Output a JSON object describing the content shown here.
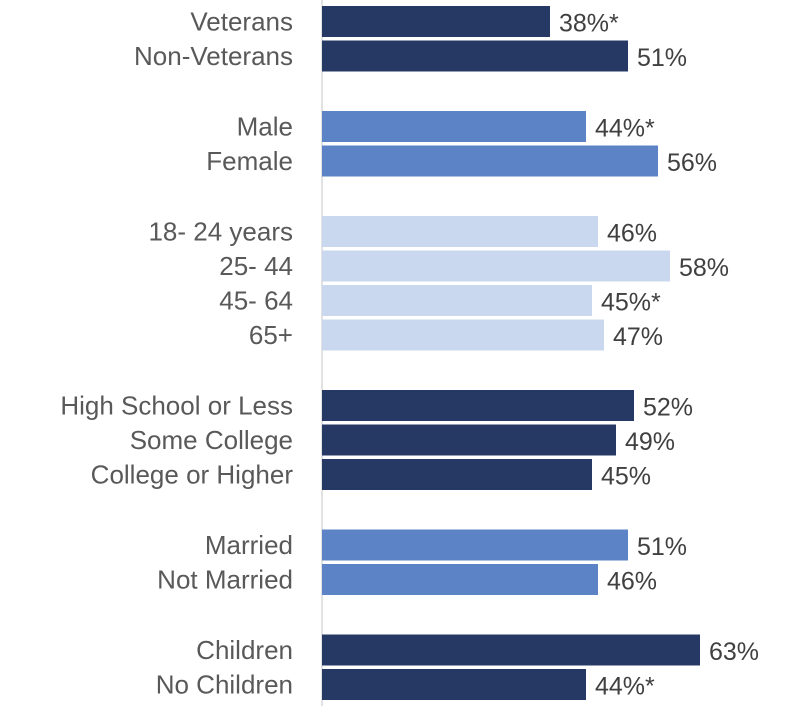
{
  "chart_data": {
    "type": "bar",
    "orientation": "horizontal",
    "xlim": [
      0,
      63
    ],
    "grid": false,
    "legend": "none",
    "groups": [
      {
        "color": "#253964",
        "items": [
          {
            "label": "Veterans",
            "value": 38,
            "value_label": "38%*"
          },
          {
            "label": "Non-Veterans",
            "value": 51,
            "value_label": "51%"
          }
        ]
      },
      {
        "color": "#5B83C6",
        "items": [
          {
            "label": "Male",
            "value": 44,
            "value_label": "44%*"
          },
          {
            "label": "Female",
            "value": 56,
            "value_label": "56%"
          }
        ]
      },
      {
        "color": "#C9D8EE",
        "items": [
          {
            "label": "18- 24 years",
            "value": 46,
            "value_label": "46%"
          },
          {
            "label": "25- 44",
            "value": 58,
            "value_label": "58%"
          },
          {
            "label": "45- 64",
            "value": 45,
            "value_label": "45%*"
          },
          {
            "label": "65+",
            "value": 47,
            "value_label": "47%"
          }
        ]
      },
      {
        "color": "#253964",
        "items": [
          {
            "label": "High School or Less",
            "value": 52,
            "value_label": "52%"
          },
          {
            "label": "Some College",
            "value": 49,
            "value_label": "49%"
          },
          {
            "label": "College or Higher",
            "value": 45,
            "value_label": "45%"
          }
        ]
      },
      {
        "color": "#5B83C6",
        "items": [
          {
            "label": "Married",
            "value": 51,
            "value_label": "51%"
          },
          {
            "label": "Not Married",
            "value": 46,
            "value_label": "46%"
          }
        ]
      },
      {
        "color": "#253964",
        "items": [
          {
            "label": "Children",
            "value": 63,
            "value_label": "63%"
          },
          {
            "label": "No Children",
            "value": 44,
            "value_label": "44%*"
          }
        ]
      }
    ]
  }
}
